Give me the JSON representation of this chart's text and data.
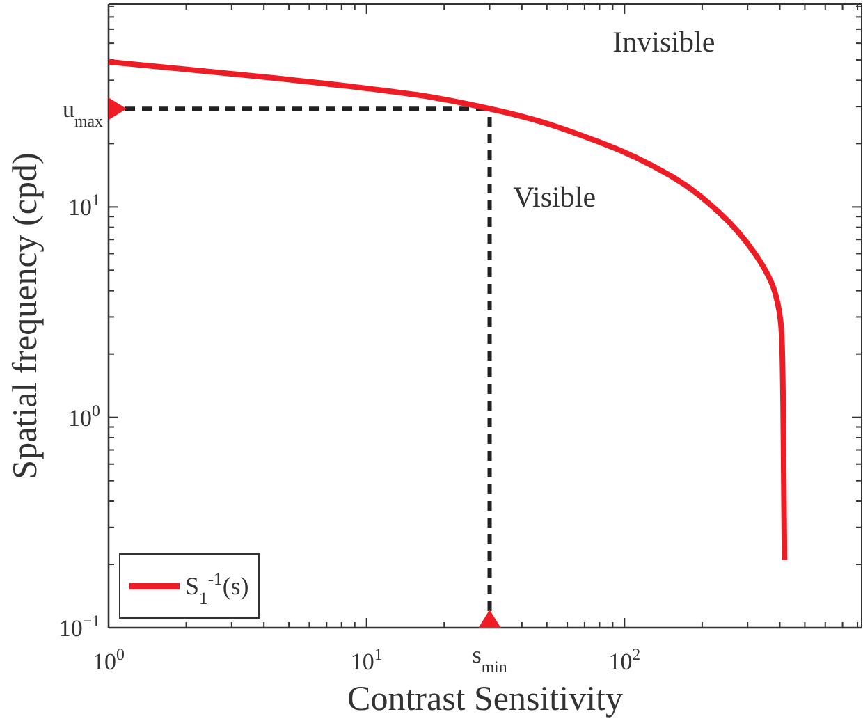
{
  "chart_data": {
    "type": "line",
    "xlabel": "Contrast Sensitivity",
    "ylabel": "Spatial frequency (cpd)",
    "log": "xy",
    "xlim": [
      1,
      830
    ],
    "ylim": [
      0.1,
      92
    ],
    "xticks": [
      {
        "value": 1,
        "label": "10$^{0}$"
      },
      {
        "value": 2,
        "label": null
      },
      {
        "value": 3,
        "label": null
      },
      {
        "value": 4,
        "label": null
      },
      {
        "value": 5,
        "label": null
      },
      {
        "value": 6,
        "label": null
      },
      {
        "value": 7,
        "label": null
      },
      {
        "value": 8,
        "label": null
      },
      {
        "value": 9,
        "label": null
      },
      {
        "value": 10,
        "label": "10$^{1}$"
      },
      {
        "value": 20,
        "label": null
      },
      {
        "value": 30,
        "label": null
      },
      {
        "value": 40,
        "label": null
      },
      {
        "value": 50,
        "label": null
      },
      {
        "value": 60,
        "label": null
      },
      {
        "value": 70,
        "label": null
      },
      {
        "value": 80,
        "label": null
      },
      {
        "value": 90,
        "label": null
      },
      {
        "value": 100,
        "label": "10$^{2}$"
      },
      {
        "value": 200,
        "label": null
      },
      {
        "value": 300,
        "label": null
      },
      {
        "value": 400,
        "label": null
      },
      {
        "value": 500,
        "label": null
      },
      {
        "value": 600,
        "label": null
      },
      {
        "value": 700,
        "label": null
      },
      {
        "value": 800,
        "label": null
      }
    ],
    "yticks": [
      {
        "value": 0.1,
        "label": "10$^{−1}$"
      },
      {
        "value": 0.2,
        "label": null
      },
      {
        "value": 0.3,
        "label": null
      },
      {
        "value": 0.4,
        "label": null
      },
      {
        "value": 0.5,
        "label": null
      },
      {
        "value": 0.6,
        "label": null
      },
      {
        "value": 0.7,
        "label": null
      },
      {
        "value": 0.8,
        "label": null
      },
      {
        "value": 0.9,
        "label": null
      },
      {
        "value": 1,
        "label": "10$^{0}$"
      },
      {
        "value": 2,
        "label": null
      },
      {
        "value": 3,
        "label": null
      },
      {
        "value": 4,
        "label": null
      },
      {
        "value": 5,
        "label": null
      },
      {
        "value": 6,
        "label": null
      },
      {
        "value": 7,
        "label": null
      },
      {
        "value": 8,
        "label": null
      },
      {
        "value": 9,
        "label": null
      },
      {
        "value": 10,
        "label": "10$^{1}$"
      },
      {
        "value": 20,
        "label": null
      },
      {
        "value": 30,
        "label": null
      },
      {
        "value": 40,
        "label": null
      },
      {
        "value": 50,
        "label": null
      },
      {
        "value": 60,
        "label": null
      },
      {
        "value": 70,
        "label": null
      },
      {
        "value": 80,
        "label": null
      },
      {
        "value": 90,
        "label": null
      }
    ],
    "grid": false,
    "legend": "bottom left",
    "marker": "none",
    "line_style": "solid",
    "series": [
      {
        "name": "S$_{1}$$^{-1}$(s)",
        "color": "#ee1c25",
        "x": [
          1,
          4.5,
          15.7,
          30,
          82,
          152,
          233,
          321,
          382,
          407,
          412,
          417
        ],
        "values": [
          49,
          40.9,
          34.1,
          29.3,
          20.1,
          14,
          9.4,
          5.97,
          3.97,
          2.41,
          1.13,
          0.21
        ]
      }
    ],
    "ref_lines": [
      {
        "axis": "y",
        "value": 29.3,
        "label": "u$_{max}$",
        "color": "#222222",
        "line_style": "dashed"
      },
      {
        "axis": "x",
        "value": 30,
        "label": "s$_{min}$",
        "color": "#222222",
        "line_style": "dashed"
      }
    ],
    "annotations": [
      "Invisible",
      "Visible"
    ]
  }
}
